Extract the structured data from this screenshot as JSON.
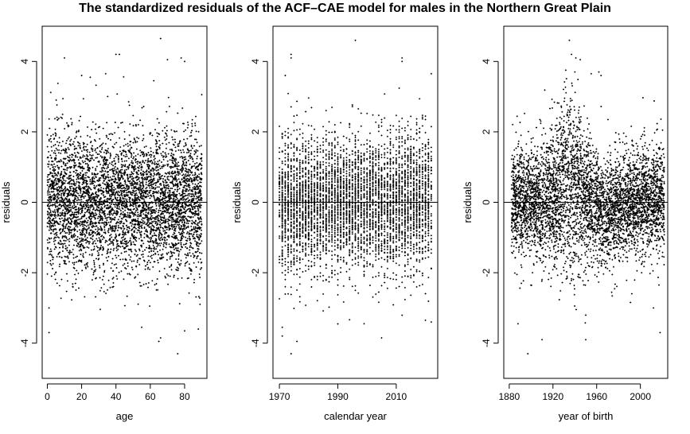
{
  "title": "The standardized residuals of the ACF–CAE model for males in the Northern Great Plain",
  "chart_data": [
    {
      "type": "scatter",
      "xlabel": "age",
      "ylabel": "residuals",
      "xlim": [
        -3,
        93
      ],
      "ylim": [
        -5,
        5
      ],
      "xticks": [
        0,
        20,
        40,
        60,
        80
      ],
      "yticks": [
        -4,
        -2,
        0,
        2,
        4
      ],
      "hline": 0,
      "grid": false,
      "point_color": "#000000",
      "x_range": [
        0,
        90
      ],
      "sample_count": 5000,
      "seed": 11,
      "points": [
        [
          10,
          4.1
        ],
        [
          40,
          4.2
        ],
        [
          42,
          4.2
        ],
        [
          78,
          4.1
        ],
        [
          80,
          4.0
        ],
        [
          70,
          4.05
        ],
        [
          66,
          4.65
        ],
        [
          20,
          3.6
        ],
        [
          25,
          3.55
        ],
        [
          34,
          3.65
        ],
        [
          65,
          -3.95
        ],
        [
          66,
          -3.85
        ],
        [
          76,
          -4.3
        ],
        [
          80,
          -3.65
        ],
        [
          1,
          -3.7
        ],
        [
          1,
          -3.0
        ],
        [
          88,
          -3.6
        ],
        [
          55,
          -3.55
        ]
      ]
    },
    {
      "type": "scatter",
      "xlabel": "calendar year",
      "ylabel": "residuals",
      "xlim": [
        1967.8,
        2024.2
      ],
      "ylim": [
        -5,
        5
      ],
      "xticks": [
        1970,
        1990,
        2010
      ],
      "xtick_labels": [
        "1970",
        "1990",
        "2010"
      ],
      "yticks": [
        -4,
        -2,
        0,
        2,
        4
      ],
      "hline": 0,
      "grid": false,
      "point_color": "#000000",
      "x_range": [
        1970,
        2022
      ],
      "sample_count": 5000,
      "seed": 23,
      "points": [
        [
          1974,
          4.2
        ],
        [
          1974,
          4.1
        ],
        [
          1996,
          4.6
        ],
        [
          2012,
          4.1
        ],
        [
          2012,
          4.0
        ],
        [
          1972,
          3.6
        ],
        [
          1971,
          -3.55
        ],
        [
          1971,
          -3.8
        ],
        [
          1974,
          -4.3
        ],
        [
          1976,
          -3.95
        ],
        [
          1999,
          -3.45
        ],
        [
          2005,
          -3.85
        ],
        [
          2020,
          -3.35
        ],
        [
          2022,
          -3.4
        ],
        [
          2022,
          3.65
        ]
      ]
    },
    {
      "type": "scatter",
      "xlabel": "year of birth",
      "ylabel": "residuals",
      "xlim": [
        1875,
        2025
      ],
      "ylim": [
        -5,
        5
      ],
      "xticks": [
        1880,
        1920,
        1960,
        2000
      ],
      "xtick_labels": [
        "1880",
        "1920",
        "1960",
        "2000"
      ],
      "yticks": [
        -4,
        -2,
        0,
        2,
        4
      ],
      "hline": 0,
      "grid": false,
      "point_color": "#000000",
      "x_range": [
        1882,
        2022
      ],
      "sample_count": 5000,
      "seed": 37,
      "points": [
        [
          1935,
          4.6
        ],
        [
          1937,
          4.2
        ],
        [
          1941,
          4.1
        ],
        [
          1945,
          4.05
        ],
        [
          1940,
          3.7
        ],
        [
          1955,
          3.65
        ],
        [
          1962,
          3.7
        ],
        [
          1964,
          3.6
        ],
        [
          1897,
          -4.3
        ],
        [
          1888,
          -3.45
        ],
        [
          1950,
          -3.9
        ],
        [
          2018,
          -3.7
        ],
        [
          2017,
          -2.35
        ],
        [
          2012,
          -3.0
        ],
        [
          1910,
          -3.9
        ]
      ]
    }
  ]
}
